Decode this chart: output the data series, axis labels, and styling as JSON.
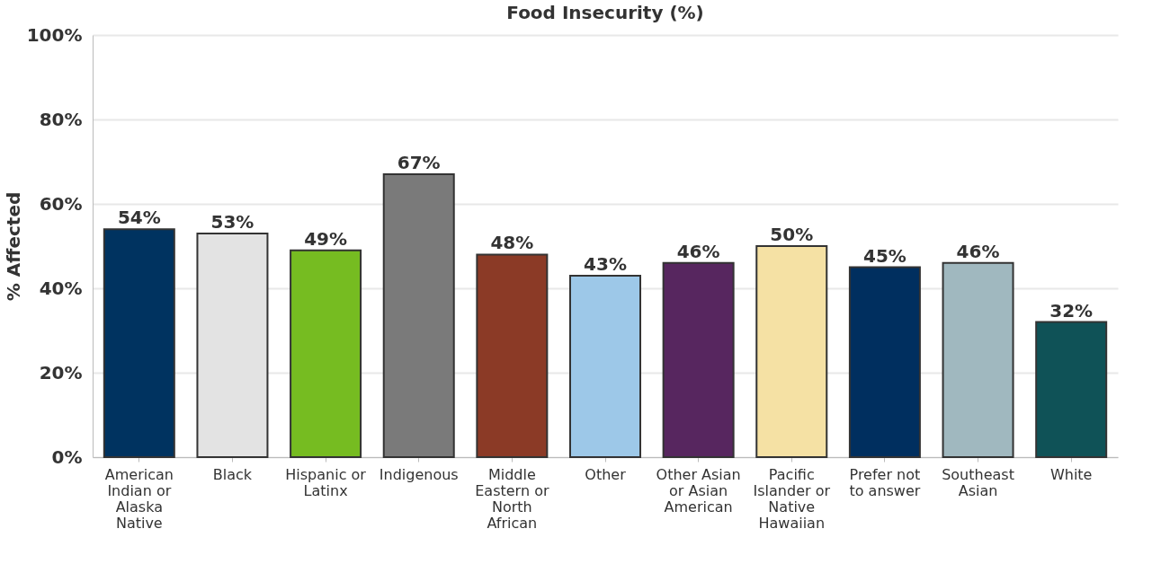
{
  "chart_data": {
    "type": "bar",
    "title": "Food Insecurity (%)",
    "ylabel": "% Affected",
    "categories": [
      "American Indian or Alaska Native",
      "Black",
      "Hispanic or Latinx",
      "Indigenous",
      "Middle Eastern or North African",
      "Other",
      "Other Asian or Asian American",
      "Pacific Islander or Native Hawaiian",
      "Prefer not to answer",
      "Southeast Asian",
      "White"
    ],
    "values": [
      54,
      53,
      49,
      67,
      48,
      43,
      46,
      50,
      45,
      46,
      32
    ],
    "colors": [
      "#003360",
      "#e3e3e3",
      "#76bc21",
      "#7a7a7a",
      "#8b3a26",
      "#9dc8e8",
      "#57265f",
      "#f5e1a4",
      "#002f5f",
      "#a0b8bf",
      "#0f5257"
    ],
    "value_labels": [
      "54%",
      "53%",
      "49%",
      "67%",
      "48%",
      "43%",
      "46%",
      "50%",
      "45%",
      "46%",
      "32%"
    ],
    "ylim": [
      0,
      100
    ],
    "yticks": [
      {
        "value": 0,
        "label": "0%"
      },
      {
        "value": 20,
        "label": "20%"
      },
      {
        "value": 40,
        "label": "40%"
      },
      {
        "value": 60,
        "label": "60%"
      },
      {
        "value": 80,
        "label": "80%"
      },
      {
        "value": 100,
        "label": "100%"
      }
    ],
    "grid": "y"
  }
}
